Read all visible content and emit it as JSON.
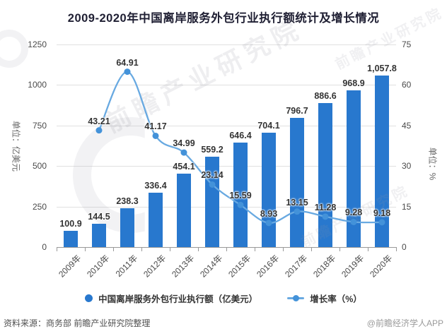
{
  "title": "2009-2020年中国离岸服务外包行业执行额统计及增长情况",
  "chart_data": {
    "type": "bar",
    "subtype": "bar-line-combo",
    "categories": [
      "2009年",
      "2010年",
      "2011年",
      "2012年",
      "2013年",
      "2014年",
      "2015年",
      "2016年",
      "2017年",
      "2018年",
      "2019年",
      "2020年"
    ],
    "series": [
      {
        "name": "中国离岸服务外包行业执行额（亿美元）",
        "type": "bar",
        "y_axis": "left",
        "color": "#2878ce",
        "values": [
          100.9,
          144.5,
          238.3,
          336.4,
          454.1,
          559.2,
          646.4,
          704.1,
          796.7,
          886.6,
          968.9,
          1057.8
        ],
        "labels": [
          "100.9",
          "144.5",
          "238.3",
          "336.4",
          "454.1",
          "559.2",
          "646.4",
          "704.1",
          "796.7",
          "886.6",
          "968.9",
          "1,057.8"
        ]
      },
      {
        "name": "增长率（%）",
        "type": "line",
        "smooth": true,
        "y_axis": "right",
        "color": "#68a9e1",
        "marker_color": "#4392d9",
        "values": [
          null,
          43.21,
          64.91,
          41.17,
          34.99,
          23.14,
          15.59,
          8.93,
          13.15,
          11.28,
          9.28,
          9.18
        ],
        "labels": [
          "",
          "43.21",
          "64.91",
          "41.17",
          "34.99",
          "23.14",
          "15.59",
          "8.93",
          "13.15",
          "11.28",
          "9.28",
          "9.18"
        ]
      }
    ],
    "left_axis": {
      "name": "单位：亿美元",
      "min": 0,
      "max": 1250,
      "ticks": [
        0,
        250,
        500,
        750,
        1000,
        1250
      ]
    },
    "right_axis": {
      "name": "单位：%",
      "min": 0,
      "max": 75,
      "ticks": [
        0,
        15,
        30,
        45,
        60,
        75
      ]
    },
    "grid": true,
    "legend_position": "bottom"
  },
  "legend": {
    "items": [
      {
        "label": "中国离岸服务外包行业执行额（亿美元）",
        "marker": "circle"
      },
      {
        "label": "增长率（%）",
        "marker": "line-dot"
      }
    ]
  },
  "footer": {
    "source": "资料来源：商务部 前瞻产业研究院整理",
    "credit": "@前瞻经济学人APP"
  },
  "watermark": {
    "text": "前瞻产业研究院"
  },
  "colors": {
    "bar": "#2878ce",
    "line": "#68a9e1",
    "marker": "#4392d9",
    "title": "#1f1f33",
    "grid": "#e0e0e0",
    "axis": "#999999",
    "tick_label": "#4a4a4a",
    "data_label": "#333333"
  }
}
